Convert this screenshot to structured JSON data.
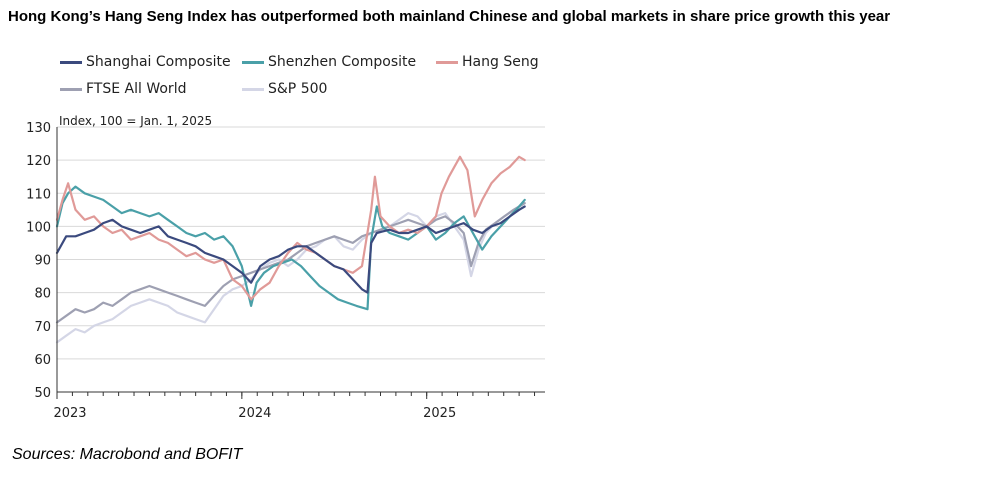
{
  "title": "Hong Kong’s Hang Seng Index has outperformed both mainland Chinese and global markets in share price growth this year",
  "source": "Sources: Macrobond and BOFIT",
  "chart_data": {
    "type": "line",
    "ylabel": "Index, 100 = Jan. 1, 2025",
    "ylim": [
      50,
      130
    ],
    "yticks": [
      50,
      60,
      70,
      80,
      90,
      100,
      110,
      120,
      130
    ],
    "xlim": [
      2023.0,
      2025.64
    ],
    "xticks": [
      {
        "value": 2023.0,
        "label": "2023"
      },
      {
        "value": 2024.0,
        "label": "2024"
      },
      {
        "value": 2025.0,
        "label": "2025"
      }
    ],
    "grid": true,
    "legend_position": "top",
    "series": [
      {
        "name": "Shanghai Composite",
        "color": "#3b4a7e",
        "points": [
          [
            2023.0,
            92
          ],
          [
            2023.05,
            97
          ],
          [
            2023.1,
            97
          ],
          [
            2023.15,
            98
          ],
          [
            2023.2,
            99
          ],
          [
            2023.25,
            101
          ],
          [
            2023.3,
            102
          ],
          [
            2023.35,
            100
          ],
          [
            2023.4,
            99
          ],
          [
            2023.45,
            98
          ],
          [
            2023.5,
            99
          ],
          [
            2023.55,
            100
          ],
          [
            2023.6,
            97
          ],
          [
            2023.65,
            96
          ],
          [
            2023.7,
            95
          ],
          [
            2023.75,
            94
          ],
          [
            2023.8,
            92
          ],
          [
            2023.85,
            91
          ],
          [
            2023.9,
            90
          ],
          [
            2023.95,
            88
          ],
          [
            2024.0,
            86
          ],
          [
            2024.05,
            83
          ],
          [
            2024.1,
            88
          ],
          [
            2024.15,
            90
          ],
          [
            2024.2,
            91
          ],
          [
            2024.25,
            93
          ],
          [
            2024.3,
            94
          ],
          [
            2024.35,
            94
          ],
          [
            2024.4,
            92
          ],
          [
            2024.45,
            90
          ],
          [
            2024.5,
            88
          ],
          [
            2024.55,
            87
          ],
          [
            2024.6,
            84
          ],
          [
            2024.65,
            81
          ],
          [
            2024.68,
            80
          ],
          [
            2024.7,
            95
          ],
          [
            2024.73,
            98
          ],
          [
            2024.8,
            99
          ],
          [
            2024.85,
            98
          ],
          [
            2024.9,
            98
          ],
          [
            2024.95,
            99
          ],
          [
            2025.0,
            100
          ],
          [
            2025.05,
            98
          ],
          [
            2025.1,
            99
          ],
          [
            2025.15,
            100
          ],
          [
            2025.2,
            101
          ],
          [
            2025.25,
            99
          ],
          [
            2025.3,
            98
          ],
          [
            2025.35,
            100
          ],
          [
            2025.4,
            101
          ],
          [
            2025.45,
            103
          ],
          [
            2025.5,
            105
          ],
          [
            2025.53,
            106
          ]
        ]
      },
      {
        "name": "Shenzhen Composite",
        "color": "#4aa0a8",
        "points": [
          [
            2023.0,
            100
          ],
          [
            2023.03,
            107
          ],
          [
            2023.06,
            110
          ],
          [
            2023.1,
            112
          ],
          [
            2023.15,
            110
          ],
          [
            2023.2,
            109
          ],
          [
            2023.25,
            108
          ],
          [
            2023.3,
            106
          ],
          [
            2023.35,
            104
          ],
          [
            2023.4,
            105
          ],
          [
            2023.45,
            104
          ],
          [
            2023.5,
            103
          ],
          [
            2023.55,
            104
          ],
          [
            2023.6,
            102
          ],
          [
            2023.65,
            100
          ],
          [
            2023.7,
            98
          ],
          [
            2023.75,
            97
          ],
          [
            2023.8,
            98
          ],
          [
            2023.85,
            96
          ],
          [
            2023.9,
            97
          ],
          [
            2023.95,
            94
          ],
          [
            2024.0,
            88
          ],
          [
            2024.05,
            76
          ],
          [
            2024.08,
            83
          ],
          [
            2024.12,
            86
          ],
          [
            2024.17,
            88
          ],
          [
            2024.22,
            89
          ],
          [
            2024.27,
            90
          ],
          [
            2024.32,
            88
          ],
          [
            2024.37,
            85
          ],
          [
            2024.42,
            82
          ],
          [
            2024.47,
            80
          ],
          [
            2024.52,
            78
          ],
          [
            2024.57,
            77
          ],
          [
            2024.62,
            76
          ],
          [
            2024.68,
            75
          ],
          [
            2024.7,
            96
          ],
          [
            2024.73,
            106
          ],
          [
            2024.76,
            100
          ],
          [
            2024.8,
            98
          ],
          [
            2024.85,
            97
          ],
          [
            2024.9,
            96
          ],
          [
            2024.95,
            98
          ],
          [
            2025.0,
            100
          ],
          [
            2025.05,
            96
          ],
          [
            2025.1,
            98
          ],
          [
            2025.15,
            101
          ],
          [
            2025.2,
            103
          ],
          [
            2025.25,
            98
          ],
          [
            2025.3,
            93
          ],
          [
            2025.35,
            97
          ],
          [
            2025.4,
            100
          ],
          [
            2025.45,
            103
          ],
          [
            2025.5,
            106
          ],
          [
            2025.53,
            108
          ]
        ]
      },
      {
        "name": "Hang Seng",
        "color": "#e09a98",
        "points": [
          [
            2023.0,
            102
          ],
          [
            2023.03,
            108
          ],
          [
            2023.06,
            113
          ],
          [
            2023.1,
            105
          ],
          [
            2023.15,
            102
          ],
          [
            2023.2,
            103
          ],
          [
            2023.25,
            100
          ],
          [
            2023.3,
            98
          ],
          [
            2023.35,
            99
          ],
          [
            2023.4,
            96
          ],
          [
            2023.45,
            97
          ],
          [
            2023.5,
            98
          ],
          [
            2023.55,
            96
          ],
          [
            2023.6,
            95
          ],
          [
            2023.65,
            93
          ],
          [
            2023.7,
            91
          ],
          [
            2023.75,
            92
          ],
          [
            2023.8,
            90
          ],
          [
            2023.85,
            89
          ],
          [
            2023.9,
            90
          ],
          [
            2023.95,
            84
          ],
          [
            2024.0,
            82
          ],
          [
            2024.05,
            78
          ],
          [
            2024.1,
            81
          ],
          [
            2024.15,
            83
          ],
          [
            2024.2,
            88
          ],
          [
            2024.25,
            92
          ],
          [
            2024.3,
            95
          ],
          [
            2024.35,
            93
          ],
          [
            2024.4,
            92
          ],
          [
            2024.45,
            90
          ],
          [
            2024.5,
            88
          ],
          [
            2024.55,
            87
          ],
          [
            2024.6,
            86
          ],
          [
            2024.65,
            88
          ],
          [
            2024.7,
            105
          ],
          [
            2024.72,
            115
          ],
          [
            2024.75,
            103
          ],
          [
            2024.8,
            100
          ],
          [
            2024.85,
            98
          ],
          [
            2024.9,
            99
          ],
          [
            2024.95,
            98
          ],
          [
            2025.0,
            100
          ],
          [
            2025.05,
            103
          ],
          [
            2025.08,
            110
          ],
          [
            2025.12,
            115
          ],
          [
            2025.15,
            118
          ],
          [
            2025.18,
            121
          ],
          [
            2025.22,
            117
          ],
          [
            2025.26,
            103
          ],
          [
            2025.3,
            108
          ],
          [
            2025.35,
            113
          ],
          [
            2025.4,
            116
          ],
          [
            2025.45,
            118
          ],
          [
            2025.5,
            121
          ],
          [
            2025.53,
            120
          ]
        ]
      },
      {
        "name": "FTSE All World",
        "color": "#9ea0b2",
        "points": [
          [
            2023.0,
            71
          ],
          [
            2023.05,
            73
          ],
          [
            2023.1,
            75
          ],
          [
            2023.15,
            74
          ],
          [
            2023.2,
            75
          ],
          [
            2023.25,
            77
          ],
          [
            2023.3,
            76
          ],
          [
            2023.35,
            78
          ],
          [
            2023.4,
            80
          ],
          [
            2023.45,
            81
          ],
          [
            2023.5,
            82
          ],
          [
            2023.55,
            81
          ],
          [
            2023.6,
            80
          ],
          [
            2023.65,
            79
          ],
          [
            2023.7,
            78
          ],
          [
            2023.75,
            77
          ],
          [
            2023.8,
            76
          ],
          [
            2023.85,
            79
          ],
          [
            2023.9,
            82
          ],
          [
            2023.95,
            84
          ],
          [
            2024.0,
            85
          ],
          [
            2024.05,
            86
          ],
          [
            2024.1,
            87
          ],
          [
            2024.15,
            88
          ],
          [
            2024.2,
            89
          ],
          [
            2024.25,
            90
          ],
          [
            2024.3,
            92
          ],
          [
            2024.35,
            94
          ],
          [
            2024.4,
            95
          ],
          [
            2024.45,
            96
          ],
          [
            2024.5,
            97
          ],
          [
            2024.55,
            96
          ],
          [
            2024.6,
            95
          ],
          [
            2024.65,
            97
          ],
          [
            2024.7,
            98
          ],
          [
            2024.75,
            99
          ],
          [
            2024.8,
            100
          ],
          [
            2024.85,
            101
          ],
          [
            2024.9,
            102
          ],
          [
            2024.95,
            101
          ],
          [
            2025.0,
            100
          ],
          [
            2025.05,
            102
          ],
          [
            2025.1,
            103
          ],
          [
            2025.15,
            101
          ],
          [
            2025.2,
            98
          ],
          [
            2025.24,
            88
          ],
          [
            2025.28,
            95
          ],
          [
            2025.32,
            99
          ],
          [
            2025.37,
            101
          ],
          [
            2025.42,
            103
          ],
          [
            2025.47,
            105
          ],
          [
            2025.53,
            107
          ]
        ]
      },
      {
        "name": "S&P 500",
        "color": "#d4d6e6",
        "points": [
          [
            2023.0,
            65
          ],
          [
            2023.05,
            67
          ],
          [
            2023.1,
            69
          ],
          [
            2023.15,
            68
          ],
          [
            2023.2,
            70
          ],
          [
            2023.25,
            71
          ],
          [
            2023.3,
            72
          ],
          [
            2023.35,
            74
          ],
          [
            2023.4,
            76
          ],
          [
            2023.45,
            77
          ],
          [
            2023.5,
            78
          ],
          [
            2023.55,
            77
          ],
          [
            2023.6,
            76
          ],
          [
            2023.65,
            74
          ],
          [
            2023.7,
            73
          ],
          [
            2023.75,
            72
          ],
          [
            2023.8,
            71
          ],
          [
            2023.85,
            75
          ],
          [
            2023.9,
            79
          ],
          [
            2023.95,
            81
          ],
          [
            2024.0,
            82
          ],
          [
            2024.05,
            84
          ],
          [
            2024.1,
            87
          ],
          [
            2024.15,
            89
          ],
          [
            2024.2,
            90
          ],
          [
            2024.25,
            88
          ],
          [
            2024.3,
            90
          ],
          [
            2024.35,
            93
          ],
          [
            2024.4,
            94
          ],
          [
            2024.45,
            96
          ],
          [
            2024.5,
            97
          ],
          [
            2024.55,
            94
          ],
          [
            2024.6,
            93
          ],
          [
            2024.65,
            96
          ],
          [
            2024.7,
            98
          ],
          [
            2024.75,
            99
          ],
          [
            2024.8,
            100
          ],
          [
            2024.85,
            102
          ],
          [
            2024.9,
            104
          ],
          [
            2024.95,
            103
          ],
          [
            2025.0,
            100
          ],
          [
            2025.05,
            103
          ],
          [
            2025.1,
            104
          ],
          [
            2025.15,
            100
          ],
          [
            2025.2,
            96
          ],
          [
            2025.24,
            85
          ],
          [
            2025.28,
            93
          ],
          [
            2025.32,
            98
          ],
          [
            2025.37,
            101
          ],
          [
            2025.42,
            103
          ],
          [
            2025.47,
            105
          ],
          [
            2025.53,
            107
          ]
        ]
      }
    ]
  }
}
